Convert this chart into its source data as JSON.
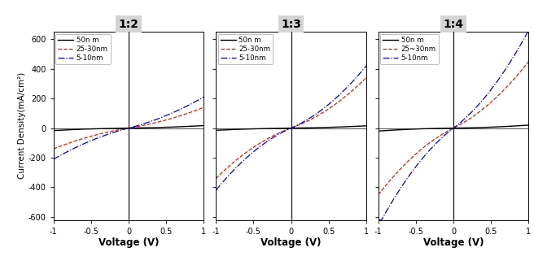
{
  "panels": [
    {
      "title": "1:2",
      "legend_labels": [
        "50n m",
        "25-30nm",
        "5-10nm"
      ]
    },
    {
      "title": "1:3",
      "legend_labels": [
        "50n m",
        "25-30nm",
        "5-10nm"
      ]
    },
    {
      "title": "1:4",
      "legend_labels": [
        "50n m",
        "25~30nm",
        "5-10nm"
      ]
    }
  ],
  "panel_params": [
    [
      [
        5,
        12
      ],
      [
        80,
        60
      ],
      [
        130,
        80
      ]
    ],
    [
      [
        5,
        10
      ],
      [
        180,
        160
      ],
      [
        220,
        200
      ]
    ],
    [
      [
        5,
        15
      ],
      [
        250,
        200
      ],
      [
        380,
        280
      ]
    ]
  ],
  "xlim": [
    -1.0,
    1.0
  ],
  "ylim": [
    -620,
    650
  ],
  "yticks": [
    -600,
    -400,
    -200,
    0,
    200,
    400,
    600
  ],
  "xticks": [
    -1.0,
    -0.5,
    0.0,
    0.5,
    1.0
  ],
  "xtick_labels": [
    "-1.0",
    "-0.5",
    "0.0",
    "0.5",
    "1.0"
  ],
  "ylabel": "Current Density(mA/cm²)",
  "xlabel": "Voltage (V)",
  "colors": [
    "#000000",
    "#cc2200",
    "#0000cc"
  ],
  "linestyles": [
    "-",
    "--",
    "-."
  ],
  "linewidths": [
    1.0,
    0.9,
    0.9
  ],
  "background_color": "#ffffff",
  "title_box_color": "#d4d4d4"
}
